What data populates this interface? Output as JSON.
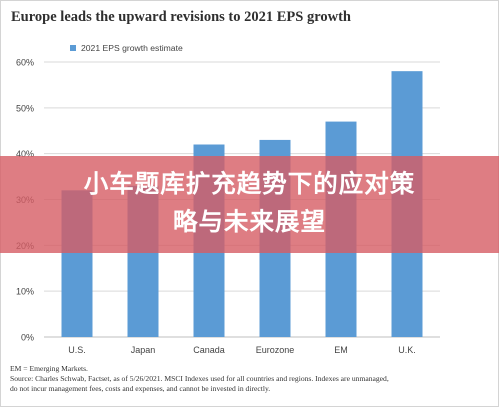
{
  "chart_data": {
    "type": "bar",
    "title": "Europe leads the upward revisions to 2021 EPS growth",
    "categories": [
      "U.S.",
      "Japan",
      "Canada",
      "Eurozone",
      "EM",
      "U.K."
    ],
    "series": [
      {
        "name": "2021 EPS growth estimate",
        "values": [
          32,
          33,
          42,
          43,
          47,
          58
        ],
        "color": "#5b9bd5"
      }
    ],
    "ylim": [
      0,
      60
    ],
    "yticks": [
      0,
      10,
      20,
      30,
      40,
      50,
      60
    ],
    "ytick_labels": [
      "0%",
      "10%",
      "20%",
      "30%",
      "40%",
      "50%",
      "60%"
    ],
    "grid": true,
    "legend_position": "top-left"
  },
  "footnotes": {
    "line1": "EM = Emerging Markets.",
    "line2": "Source: Charles Schwab, Factset, as of 5/26/2021. MSCI Indexes used for all countries and regions.  Indexes are unmanaged,",
    "line3": "do not incur management fees, costs and expenses, and cannot be invested in directly."
  },
  "overlay": {
    "line1": "小车题库扩充趋势下的应对策",
    "line2": "略与未来展望",
    "color": "#d65c64"
  }
}
